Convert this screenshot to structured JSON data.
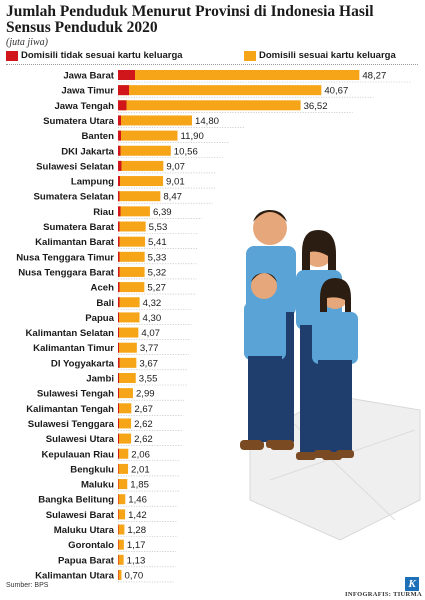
{
  "title": "Jumlah Penduduk Menurut Provinsi di Indonesia Hasil Sensus Penduduk 2020",
  "unit": "(juta jiwa)",
  "legend": {
    "red": "Domisili tidak sesuai kartu keluarga",
    "orange": "Domisili sesuai kartu keluarga"
  },
  "colors": {
    "red": "#d0161a",
    "orange": "#f6a519",
    "skin": "#e6a77a",
    "shirt": "#5aa3d6",
    "pants": "#1f3e6e"
  },
  "source": "Sumber: BPS",
  "credit": "INFOGRAFIS: TIURMA",
  "logo": "K",
  "chart_data": {
    "type": "bar",
    "orientation": "horizontal",
    "stacked": true,
    "series": [
      {
        "name": "Domisili tidak sesuai kartu keluarga",
        "color": "#d0161a"
      },
      {
        "name": "Domisili sesuai kartu keluarga",
        "color": "#f6a519"
      }
    ],
    "categories": [
      "Jawa Barat",
      "Jawa Timur",
      "Jawa Tengah",
      "Sumatera Utara",
      "Banten",
      "DKI Jakarta",
      "Sulawesi Selatan",
      "Lampung",
      "Sumatera Selatan",
      "Riau",
      "Sumatera Barat",
      "Kalimantan Barat",
      "Nusa Tenggara Timur",
      "Nusa Tenggara Barat",
      "Aceh",
      "Bali",
      "Papua",
      "Kalimantan Selatan",
      "Kalimantan Timur",
      "DI Yogyakarta",
      "Jambi",
      "Sulawesi Tengah",
      "Kalimantan Tengah",
      "Sulawesi Tenggara",
      "Sulawesi Utara",
      "Kepulauan Riau",
      "Bengkulu",
      "Maluku",
      "Bangka Belitung",
      "Sulawesi Barat",
      "Maluku Utara",
      "Gorontalo",
      "Papua Barat",
      "Kalimantan Utara"
    ],
    "totals": [
      48.27,
      40.67,
      36.52,
      14.8,
      11.9,
      10.56,
      9.07,
      9.01,
      8.47,
      6.39,
      5.53,
      5.41,
      5.33,
      5.32,
      5.27,
      4.32,
      4.3,
      4.07,
      3.77,
      3.67,
      3.55,
      2.99,
      2.67,
      2.62,
      2.62,
      2.06,
      2.01,
      1.85,
      1.46,
      1.42,
      1.28,
      1.17,
      1.13,
      0.7
    ],
    "labels": [
      "48,27",
      "40,67",
      "36,52",
      "14,80",
      "11,90",
      "10,56",
      "9,07",
      "9,01",
      "8,47",
      "6,39",
      "5,53",
      "5,41",
      "5,33",
      "5,32",
      "5,27",
      "4,32",
      "4,30",
      "4,07",
      "3,77",
      "3,67",
      "3,55",
      "2,99",
      "2,67",
      "2,62",
      "2,62",
      "2,06",
      "2,01",
      "1,85",
      "1,46",
      "1,42",
      "1,28",
      "1,17",
      "1,13",
      "0,70"
    ],
    "red_values": [
      3.4,
      2.2,
      1.7,
      0.6,
      0.6,
      0.5,
      0.7,
      0.4,
      0.3,
      0.5,
      0.3,
      0.3,
      0.3,
      0.3,
      0.3,
      0.3,
      0.2,
      0.2,
      0.2,
      0.3,
      0.2,
      0.2,
      0.2,
      0.2,
      0.2,
      0.2,
      0.1,
      0.1,
      0.1,
      0.1,
      0.1,
      0.1,
      0.1,
      0.1
    ],
    "xlim": [
      0,
      50
    ]
  }
}
